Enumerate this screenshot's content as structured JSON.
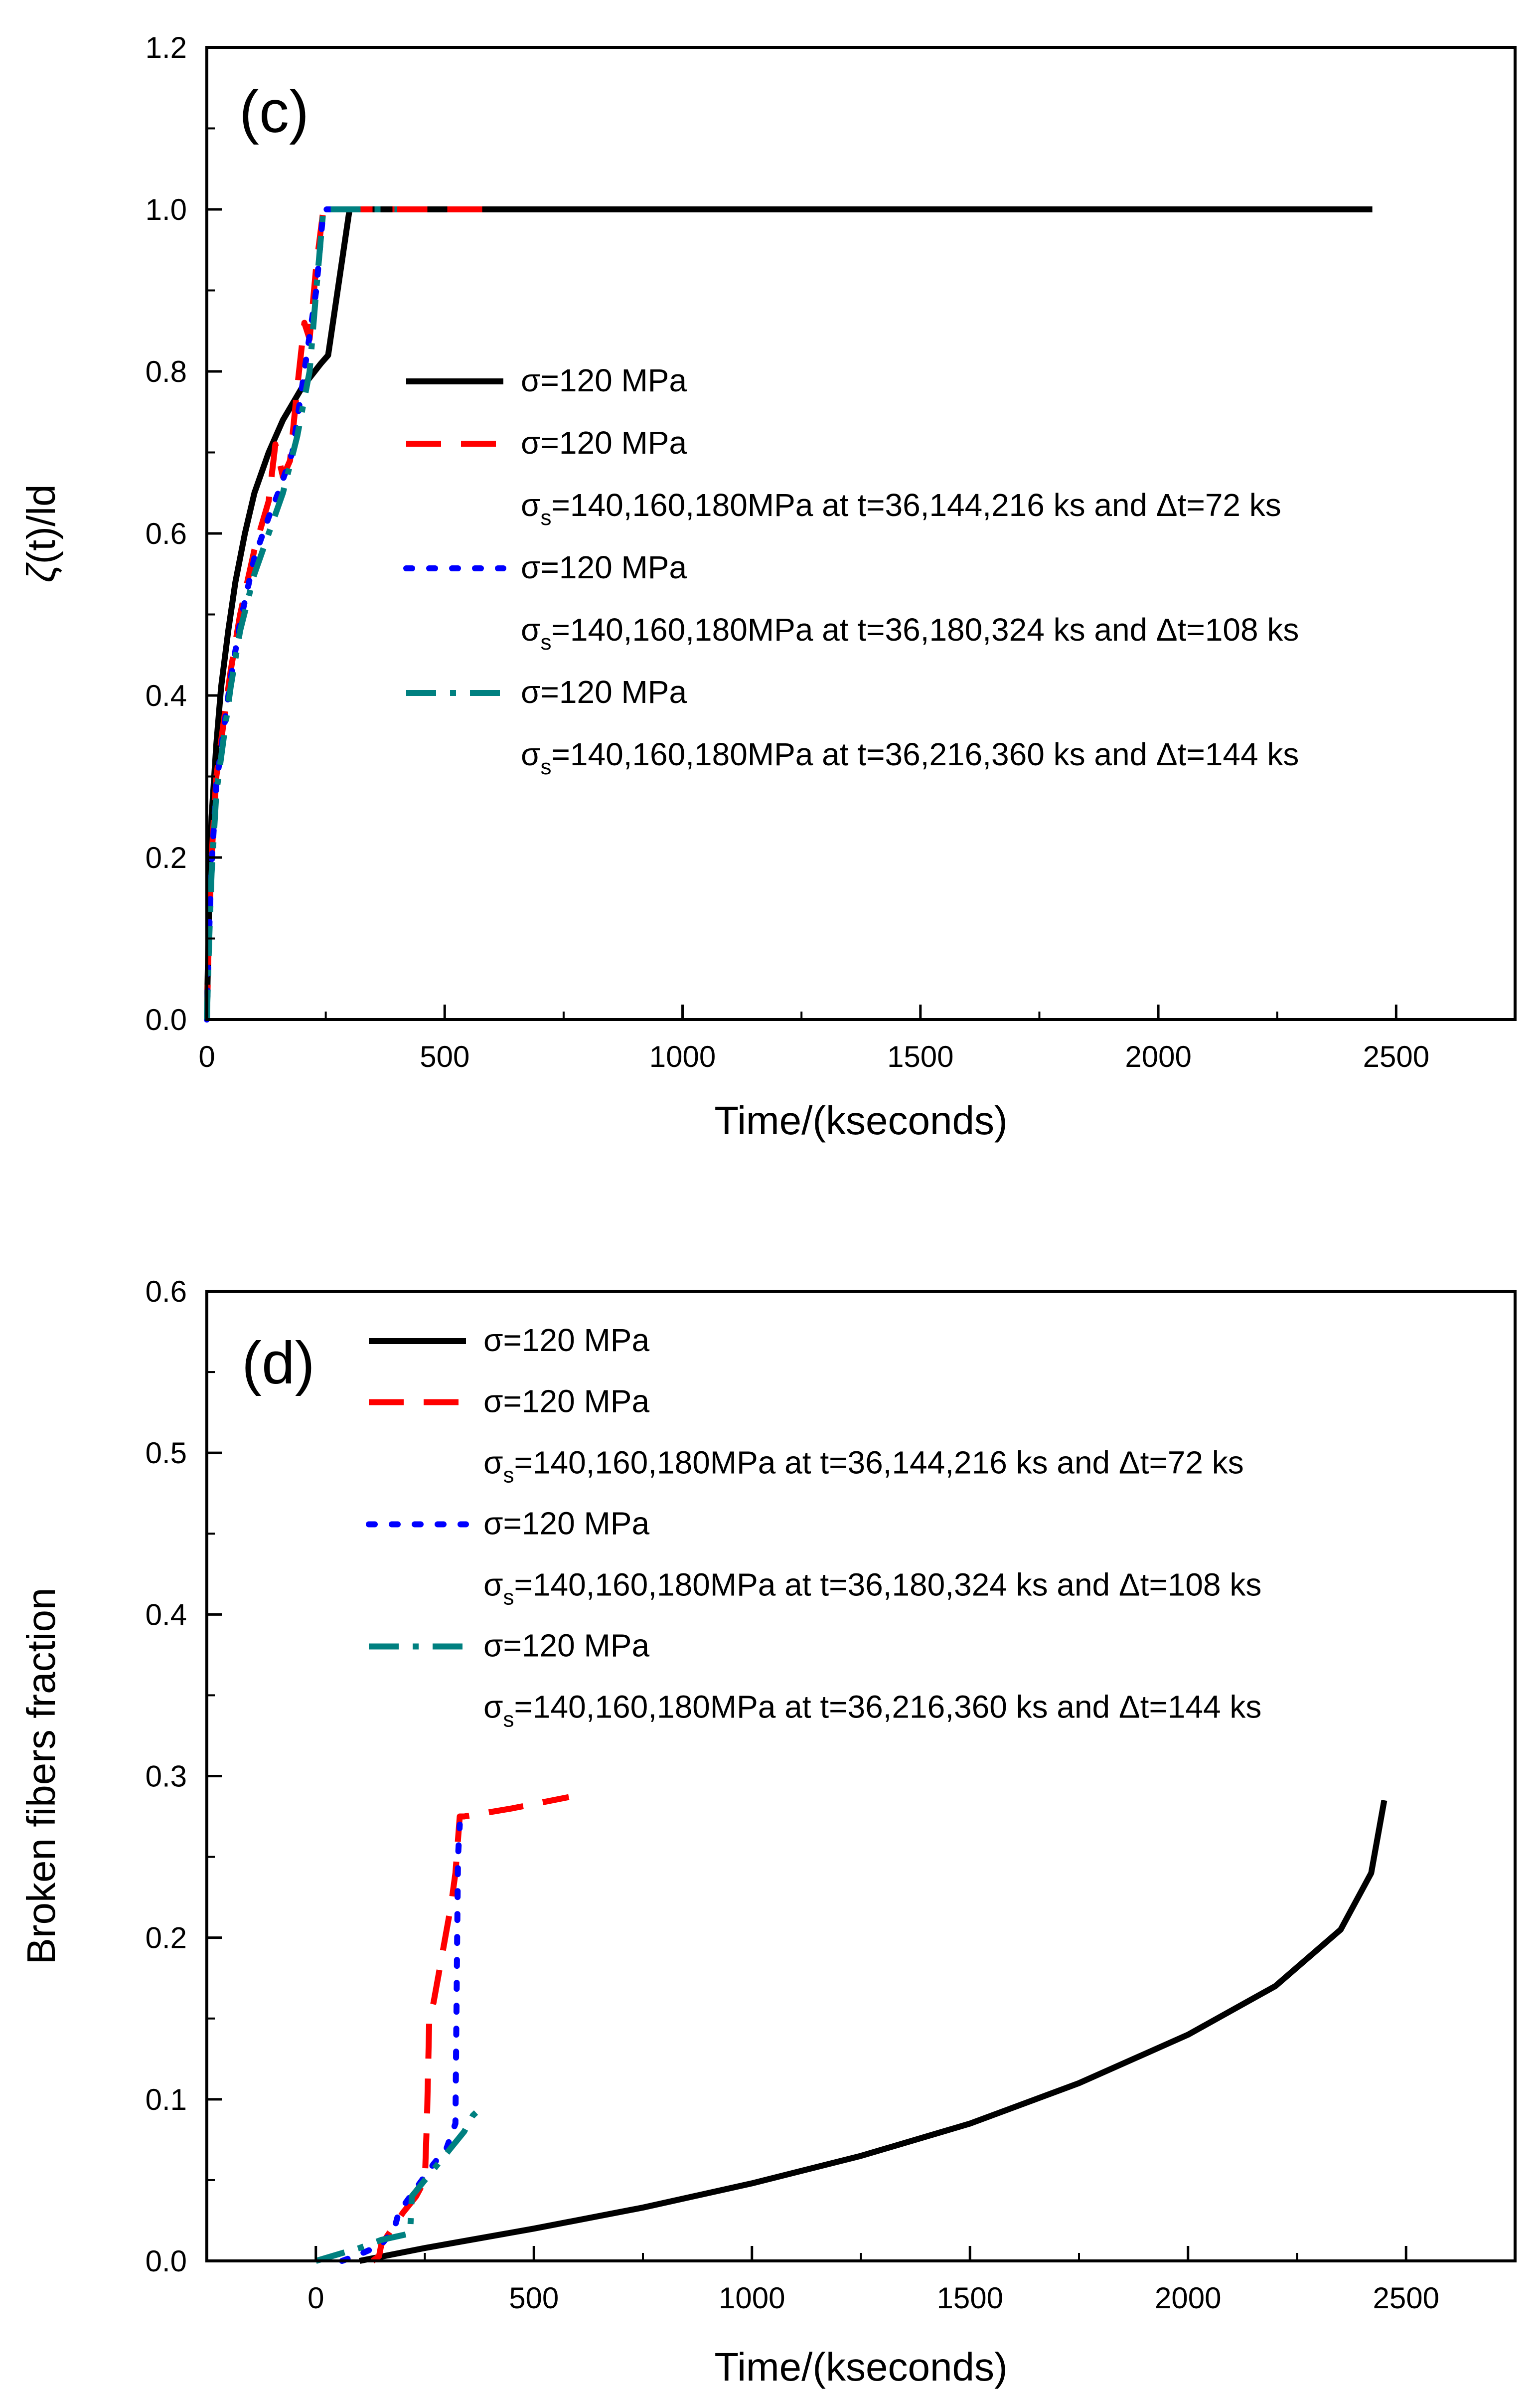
{
  "chart_data": [
    {
      "type": "line",
      "panel_label": "(c)",
      "xlabel": "Time/(kseconds)",
      "ylabel_symbol": "ζ",
      "ylabel_rest": "(t)/ld",
      "xlim": [
        0,
        2750
      ],
      "ylim": [
        0,
        1.2
      ],
      "xticks": [
        0,
        500,
        1000,
        1500,
        2000,
        2500
      ],
      "yticks": [
        "0.0",
        "0.2",
        "0.4",
        "0.6",
        "0.8",
        "1.0",
        "1.2"
      ],
      "legend_position": "center",
      "series": [
        {
          "name": "σ=120 MPa",
          "label": "σ=120 MPa",
          "color": "#000000",
          "style": "solid",
          "x": [
            0,
            5,
            10,
            20,
            30,
            45,
            60,
            80,
            100,
            130,
            160,
            200,
            240,
            255,
            300,
            400,
            1000,
            2000,
            2450
          ],
          "y": [
            0,
            0.15,
            0.25,
            0.34,
            0.41,
            0.48,
            0.54,
            0.6,
            0.65,
            0.7,
            0.74,
            0.78,
            0.81,
            0.82,
            1.0,
            1.0,
            1.0,
            1.0,
            1.0
          ]
        },
        {
          "name": "σ=120 MPa",
          "label": "σ=120 MPa",
          "sub_base": "σ",
          "sub_script": "s",
          "sub_rest": "=140,160,180MPa at t=36,144,216 ks and Δt=72 ks",
          "color": "#ff0000",
          "style": "dashed",
          "x": [
            0,
            5,
            10,
            20,
            36,
            50,
            70,
            100,
            130,
            144,
            160,
            175,
            190,
            205,
            216,
            230,
            245,
            300,
            400,
            580
          ],
          "y": [
            0,
            0.12,
            0.2,
            0.3,
            0.37,
            0.43,
            0.5,
            0.58,
            0.64,
            0.71,
            0.67,
            0.69,
            0.78,
            0.86,
            0.84,
            0.93,
            1.0,
            1.0,
            1.0,
            1.0
          ]
        },
        {
          "name": "σ=120 MPa",
          "label": "σ=120 MPa",
          "sub_base": "σ",
          "sub_script": "s",
          "sub_rest": "=140,160,180MPa at t=36,180,324 ks and Δt=108 ks",
          "color": "#0000ff",
          "style": "dotted",
          "x": [
            0,
            5,
            10,
            20,
            36,
            50,
            70,
            100,
            130,
            150,
            180,
            200,
            215,
            230,
            245,
            300,
            330
          ],
          "y": [
            0,
            0.11,
            0.19,
            0.29,
            0.36,
            0.42,
            0.49,
            0.57,
            0.62,
            0.65,
            0.7,
            0.78,
            0.84,
            0.9,
            1.0,
            1.0,
            1.0
          ]
        },
        {
          "name": "σ=120 MPa",
          "label": "σ=120 MPa",
          "sub_base": "σ",
          "sub_script": "s",
          "sub_rest": "=140,160,180MPa at t=36,216,360 ks and Δt=144 ks",
          "color": "#008080",
          "style": "dashdot",
          "x": [
            0,
            5,
            10,
            20,
            36,
            50,
            70,
            100,
            130,
            160,
            190,
            216,
            230,
            245,
            300,
            400
          ],
          "y": [
            0,
            0.1,
            0.18,
            0.28,
            0.35,
            0.41,
            0.48,
            0.55,
            0.6,
            0.65,
            0.72,
            0.8,
            0.9,
            1.0,
            1.0,
            1.0
          ]
        }
      ]
    },
    {
      "type": "line",
      "panel_label": "(d)",
      "xlabel": "Time/(kseconds)",
      "ylabel": "Broken fibers fraction",
      "xlim": [
        -250,
        2750
      ],
      "ylim": [
        0,
        0.6
      ],
      "xticks": [
        0,
        500,
        1000,
        1500,
        2000,
        2500
      ],
      "yticks": [
        "0.0",
        "0.1",
        "0.2",
        "0.3",
        "0.4",
        "0.5",
        "0.6"
      ],
      "legend_position": "top-left",
      "series": [
        {
          "name": "σ=120 MPa",
          "label": "σ=120 MPa",
          "color": "#000000",
          "style": "solid",
          "x": [
            100,
            250,
            500,
            750,
            1000,
            1250,
            1500,
            1750,
            2000,
            2200,
            2350,
            2420,
            2450
          ],
          "y": [
            0,
            0.008,
            0.02,
            0.033,
            0.048,
            0.065,
            0.085,
            0.11,
            0.14,
            0.17,
            0.205,
            0.24,
            0.285
          ]
        },
        {
          "name": "σ=120 MPa",
          "label": "σ=120 MPa",
          "sub_base": "σ",
          "sub_script": "s",
          "sub_rest": "=140,160,180MPa at t=36,144,216 ks and Δt=72 ks",
          "color": "#ff0000",
          "style": "dashed",
          "x": [
            130,
            145,
            150,
            200,
            230,
            250,
            255,
            260,
            270,
            290,
            310,
            320,
            330,
            340,
            450,
            580
          ],
          "y": [
            0,
            0.003,
            0.01,
            0.03,
            0.04,
            0.05,
            0.09,
            0.15,
            0.16,
            0.19,
            0.22,
            0.24,
            0.275,
            0.275,
            0.28,
            0.287
          ]
        },
        {
          "name": "σ=120 MPa",
          "label": "σ=120 MPa",
          "sub_base": "σ",
          "sub_script": "s",
          "sub_rest": "=140,160,180MPa at t=36,180,324 ks and Δt=108 ks",
          "color": "#0000ff",
          "style": "dotted",
          "x": [
            60,
            100,
            150,
            180,
            190,
            230,
            270,
            300,
            320,
            324,
            326,
            330
          ],
          "y": [
            0,
            0.004,
            0.01,
            0.02,
            0.03,
            0.045,
            0.06,
            0.07,
            0.085,
            0.2,
            0.25,
            0.27
          ]
        },
        {
          "name": "σ=120 MPa",
          "label": "σ=120 MPa",
          "sub_base": "σ",
          "sub_script": "s",
          "sub_rest": "=140,160,180MPa at t=36,216,360 ks and Δt=144 ks",
          "color": "#008080",
          "style": "dashdot",
          "x": [
            0,
            50,
            100,
            150,
            200,
            216,
            220,
            250,
            280,
            310,
            340,
            360,
            380
          ],
          "y": [
            0,
            0.004,
            0.008,
            0.013,
            0.016,
            0.017,
            0.04,
            0.05,
            0.06,
            0.07,
            0.08,
            0.09,
            0.095
          ]
        }
      ]
    }
  ]
}
